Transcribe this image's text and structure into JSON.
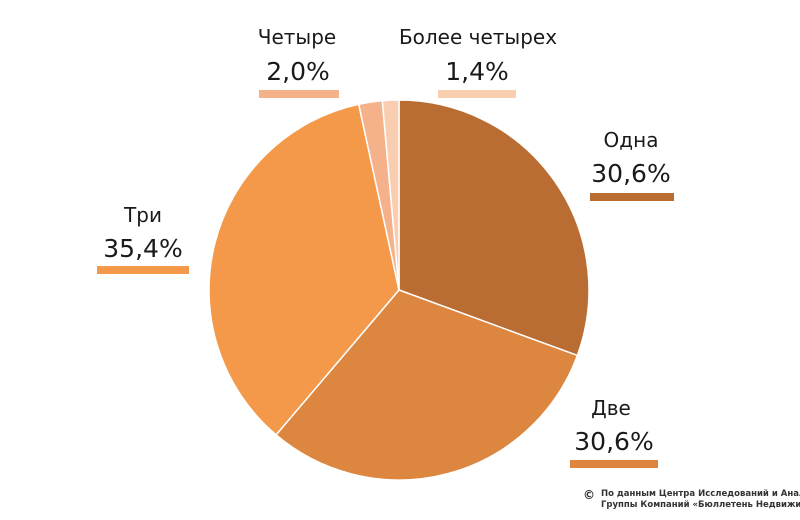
{
  "chart_data": {
    "type": "pie",
    "categories": [
      "Одна",
      "Две",
      "Три",
      "Четыре",
      "Более четырех"
    ],
    "values": [
      30.6,
      30.6,
      35.4,
      2.0,
      1.4
    ],
    "value_labels": [
      "30,6%",
      "30,6%",
      "35,4%",
      "2,0%",
      "1,4%"
    ],
    "colors": [
      "#b96d32",
      "#dc8640",
      "#f4994a",
      "#f5b18a",
      "#f8cdb0"
    ],
    "slice_border_color": "#ffffff",
    "start": "top, clockwise",
    "legend": "none"
  },
  "footer": {
    "copyright_symbol": "©",
    "source_line1": "По данным Центра Исследований и Аналитики",
    "source_line2": "Группы Компаний «Бюллетень Недвижимости»"
  }
}
